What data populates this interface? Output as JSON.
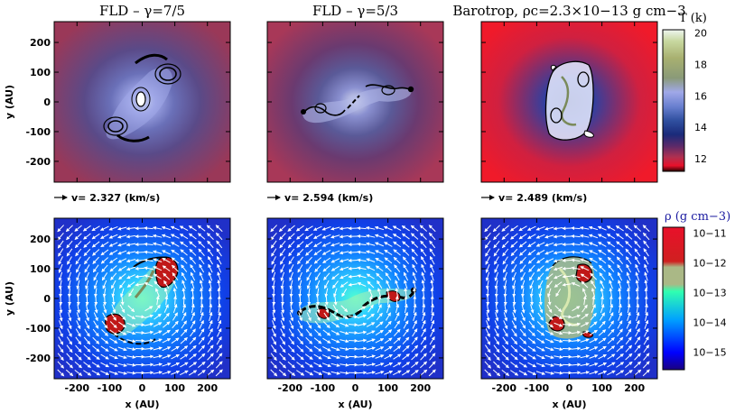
{
  "chart_data": {
    "type": "heatmap",
    "panels": [
      {
        "row": 0,
        "col": 0,
        "title": "FLD – γ=7/5",
        "field": "temperature",
        "velocity_note": "v=  2.327 (km/s)"
      },
      {
        "row": 0,
        "col": 1,
        "title": "FLD – γ=5/3",
        "field": "temperature",
        "velocity_note": "v=  2.594 (km/s)"
      },
      {
        "row": 0,
        "col": 2,
        "title": "Barotrop, ρc=2.3×10−13 g cm−3",
        "field": "temperature",
        "velocity_note": "v=  2.489 (km/s)"
      },
      {
        "row": 1,
        "col": 0,
        "title": "",
        "field": "density"
      },
      {
        "row": 1,
        "col": 1,
        "title": "",
        "field": "density"
      },
      {
        "row": 1,
        "col": 2,
        "title": "",
        "field": "density"
      }
    ],
    "xlabel": "x (AU)",
    "ylabel": "y (AU)",
    "xlim": [
      -270,
      270
    ],
    "ylim": [
      -270,
      270
    ],
    "xticks": [
      -200,
      -100,
      0,
      100,
      200
    ],
    "yticks": [
      -200,
      -100,
      0,
      100,
      200
    ],
    "colorbars": [
      {
        "label": "T (k)",
        "ticks": [
          12,
          14,
          16,
          18,
          20
        ],
        "range": [
          11.2,
          20.2
        ],
        "colors": [
          "#2a0000",
          "#e8102a",
          "#b03050",
          "#5a2a6a",
          "#1a2a7a",
          "#3050a0",
          "#6a80d0",
          "#a0a8e8",
          "#8a9a78",
          "#a8b070",
          "#c8d8a0",
          "#eef6f0"
        ]
      },
      {
        "label": "ρ (g cm−3)",
        "ticks": [
          "10−11",
          "10−12",
          "10−13",
          "10−14",
          "10−15"
        ],
        "log_range": [
          -15.6,
          -10.8
        ],
        "colors": [
          "#1a0080",
          "#0000ff",
          "#00a0ff",
          "#30ffb0",
          "#aab886",
          "#d02020",
          "#e8102a"
        ]
      }
    ]
  }
}
